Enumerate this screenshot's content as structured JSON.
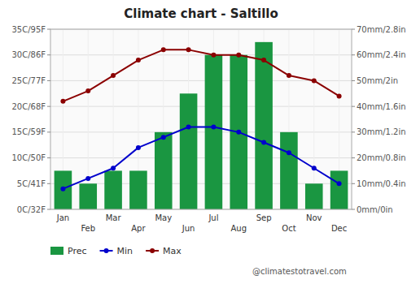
{
  "chart_data": {
    "type": "combo",
    "title": "Climate chart - Saltillo",
    "categories": [
      "Jan",
      "Feb",
      "Mar",
      "Apr",
      "May",
      "Jun",
      "Jul",
      "Aug",
      "Sep",
      "Oct",
      "Nov",
      "Dec"
    ],
    "series": [
      {
        "name": "Prec",
        "type": "bar",
        "axis": "y2",
        "color": "#1a9641",
        "values": [
          15,
          10,
          15,
          15,
          30,
          45,
          60,
          60,
          65,
          30,
          10,
          15
        ]
      },
      {
        "name": "Min",
        "type": "line",
        "color": "#0000cc",
        "marker": "circle",
        "values": [
          4,
          6,
          8,
          12,
          14,
          16,
          16,
          15,
          13,
          11,
          8,
          5
        ]
      },
      {
        "name": "Max",
        "type": "line",
        "color": "#8b0000",
        "marker": "circle",
        "values": [
          21,
          23,
          26,
          29,
          31,
          31,
          30,
          30,
          29,
          26,
          25,
          22
        ]
      }
    ],
    "ylim": [
      0,
      35
    ],
    "yticks": [
      {
        "value": 0,
        "label": "0C/32F"
      },
      {
        "value": 5,
        "label": "5C/41F"
      },
      {
        "value": 10,
        "label": "10C/50F"
      },
      {
        "value": 15,
        "label": "15C/59F"
      },
      {
        "value": 20,
        "label": "20C/68F"
      },
      {
        "value": 25,
        "label": "25C/77F"
      },
      {
        "value": 30,
        "label": "30C/86F"
      },
      {
        "value": 35,
        "label": "35C/95F"
      }
    ],
    "y2lim": [
      0,
      70
    ],
    "y2ticks": [
      {
        "value": 0,
        "label": "0mm/0in"
      },
      {
        "value": 10,
        "label": "10mm/0.4in"
      },
      {
        "value": 20,
        "label": "20mm/0.8in"
      },
      {
        "value": 30,
        "label": "30mm/1.2in"
      },
      {
        "value": 40,
        "label": "40mm/1.6in"
      },
      {
        "value": 50,
        "label": "50mm/2in"
      },
      {
        "value": 60,
        "label": "60mm/2.4in"
      },
      {
        "value": 70,
        "label": "70mm/2.8in"
      }
    ],
    "grid": true,
    "legend": "bottom",
    "annotations": [
      "@climatestotravel.com"
    ]
  }
}
